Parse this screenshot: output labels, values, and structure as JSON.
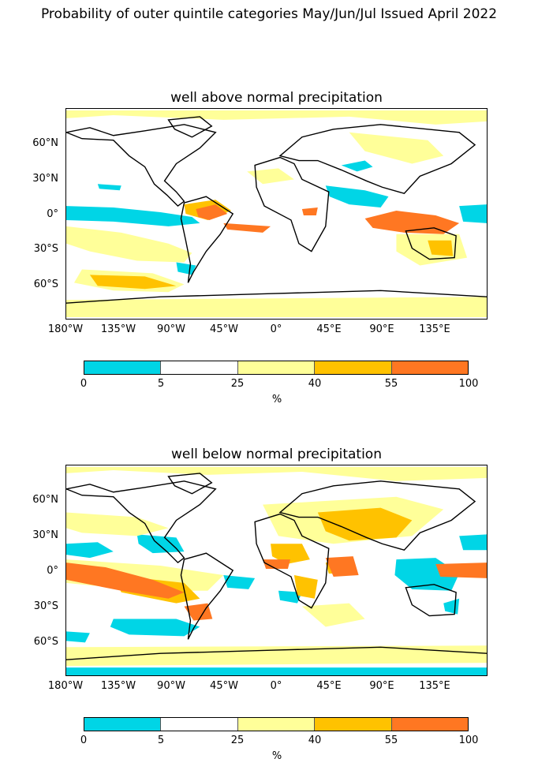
{
  "suptitle": "Probability of outer quintile categories May/Jun/Jul Issued April 2022",
  "maps": [
    {
      "title": "well above normal precipitation"
    },
    {
      "title": "well below normal precipitation"
    }
  ],
  "lat_labels": [
    "60°N",
    "30°N",
    "0°",
    "30°S",
    "60°S"
  ],
  "lon_labels": [
    "180°W",
    "135°W",
    "90°W",
    "45°W",
    "0°",
    "45°E",
    "90°E",
    "135°E"
  ],
  "colorbar": {
    "boundaries": [
      "0",
      "5",
      "25",
      "40",
      "55",
      "100"
    ],
    "unit": "%",
    "colors": [
      "#00d5e6",
      "#ffffff",
      "#ffff99",
      "#ffc200",
      "#ff7722"
    ]
  }
}
